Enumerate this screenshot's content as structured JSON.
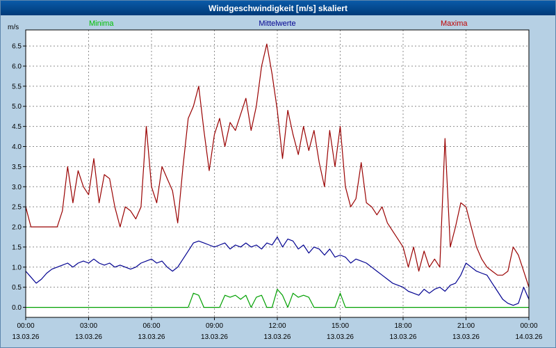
{
  "window": {
    "title": "Windgeschwindigkeit [m/s] skaliert"
  },
  "colors": {
    "background": "#b6d0e4",
    "titlebar": "#003a78",
    "plot_background": "#ffffff",
    "plot_border": "#000000",
    "grid": "#8c8c8c",
    "minima_line": "#00a000",
    "mittelwerte_line": "#000090",
    "maxima_line": "#990000"
  },
  "chart_data": {
    "type": "line",
    "title": "Windgeschwindigkeit [m/s] skaliert",
    "ylabel": "m/s",
    "xlabel": "",
    "grid": true,
    "legend_position": "top",
    "ylim": [
      -0.25,
      6.9
    ],
    "yticks": [
      0.0,
      0.5,
      1.0,
      1.5,
      2.0,
      2.5,
      3.0,
      3.5,
      4.0,
      4.5,
      5.0,
      5.5,
      6.0,
      6.5
    ],
    "xlim": [
      0,
      24
    ],
    "xticks": [
      {
        "hours": 0,
        "time": "00:00",
        "date": "13.03.26"
      },
      {
        "hours": 3,
        "time": "03:00",
        "date": "13.03.26"
      },
      {
        "hours": 6,
        "time": "06:00",
        "date": "13.03.26"
      },
      {
        "hours": 9,
        "time": "09:00",
        "date": "13.03.26"
      },
      {
        "hours": 12,
        "time": "12:00",
        "date": "13.03.26"
      },
      {
        "hours": 15,
        "time": "15:00",
        "date": "13.03.26"
      },
      {
        "hours": 18,
        "time": "18:00",
        "date": "13.03.26"
      },
      {
        "hours": 21,
        "time": "21:00",
        "date": "13.03.26"
      },
      {
        "hours": 24,
        "time": "00:00",
        "date": "14.03.26"
      }
    ],
    "x": [
      0,
      0.25,
      0.5,
      0.75,
      1,
      1.25,
      1.5,
      1.75,
      2,
      2.25,
      2.5,
      2.75,
      3,
      3.25,
      3.5,
      3.75,
      4,
      4.25,
      4.5,
      4.75,
      5,
      5.25,
      5.5,
      5.75,
      6,
      6.25,
      6.5,
      6.75,
      7,
      7.25,
      7.5,
      7.75,
      8,
      8.25,
      8.5,
      8.75,
      9,
      9.25,
      9.5,
      9.75,
      10,
      10.25,
      10.5,
      10.75,
      11,
      11.25,
      11.5,
      11.75,
      12,
      12.25,
      12.5,
      12.75,
      13,
      13.25,
      13.5,
      13.75,
      14,
      14.25,
      14.5,
      14.75,
      15,
      15.25,
      15.5,
      15.75,
      16,
      16.25,
      16.5,
      16.75,
      17,
      17.25,
      17.5,
      17.75,
      18,
      18.25,
      18.5,
      18.75,
      19,
      19.25,
      19.5,
      19.75,
      20,
      20.25,
      20.5,
      20.75,
      21,
      21.25,
      21.5,
      21.75,
      22,
      22.25,
      22.5,
      22.75,
      23,
      23.25,
      23.5,
      23.75,
      24
    ],
    "series": [
      {
        "name": "Minima",
        "color": "#00a000",
        "legend_color": "#00c000",
        "values": [
          0,
          0,
          0,
          0,
          0,
          0,
          0,
          0,
          0,
          0,
          0,
          0,
          0,
          0,
          0,
          0,
          0,
          0,
          0,
          0,
          0,
          0,
          0,
          0,
          0,
          0,
          0,
          0,
          0,
          0,
          0,
          0,
          0.35,
          0.3,
          0,
          0,
          0,
          0,
          0.3,
          0.25,
          0.3,
          0.2,
          0.3,
          0,
          0.25,
          0.3,
          0,
          0,
          0.45,
          0.3,
          0,
          0.35,
          0.25,
          0.3,
          0.25,
          0,
          0,
          0,
          0,
          0,
          0.35,
          0,
          0,
          0,
          0,
          0,
          0,
          0,
          0,
          0,
          0,
          0,
          0,
          0,
          0,
          0,
          0,
          0,
          0,
          0,
          0,
          0,
          0,
          0,
          0,
          0,
          0,
          0,
          0,
          0,
          0,
          0,
          0,
          0,
          0,
          0,
          0
        ]
      },
      {
        "name": "Mittelwerte",
        "color": "#000090",
        "legend_color": "#000090",
        "values": [
          0.9,
          0.75,
          0.6,
          0.7,
          0.85,
          0.95,
          1.0,
          1.05,
          1.1,
          1.0,
          1.1,
          1.15,
          1.1,
          1.2,
          1.1,
          1.05,
          1.1,
          1.0,
          1.05,
          1.0,
          0.95,
          1.0,
          1.1,
          1.15,
          1.2,
          1.1,
          1.15,
          1.0,
          0.9,
          1.0,
          1.2,
          1.4,
          1.6,
          1.65,
          1.6,
          1.55,
          1.5,
          1.55,
          1.6,
          1.45,
          1.55,
          1.5,
          1.6,
          1.5,
          1.55,
          1.45,
          1.6,
          1.55,
          1.75,
          1.5,
          1.7,
          1.65,
          1.45,
          1.55,
          1.35,
          1.5,
          1.45,
          1.3,
          1.45,
          1.25,
          1.3,
          1.25,
          1.1,
          1.2,
          1.15,
          1.1,
          1.0,
          0.9,
          0.8,
          0.7,
          0.6,
          0.55,
          0.5,
          0.4,
          0.35,
          0.3,
          0.45,
          0.35,
          0.45,
          0.5,
          0.4,
          0.55,
          0.6,
          0.8,
          1.1,
          1.0,
          0.9,
          0.85,
          0.8,
          0.6,
          0.4,
          0.2,
          0.1,
          0.05,
          0.1,
          0.5,
          0.2
        ]
      },
      {
        "name": "Maxima",
        "color": "#990000",
        "legend_color": "#c00000",
        "values": [
          2.5,
          2.0,
          2.0,
          2.0,
          2.0,
          2.0,
          2.0,
          2.4,
          3.5,
          2.6,
          3.4,
          3.0,
          2.8,
          3.7,
          2.6,
          3.3,
          3.2,
          2.5,
          2.0,
          2.5,
          2.4,
          2.2,
          2.5,
          4.5,
          3.0,
          2.6,
          3.5,
          3.2,
          2.9,
          2.1,
          3.5,
          4.7,
          5.0,
          5.5,
          4.4,
          3.4,
          4.3,
          4.7,
          4.0,
          4.6,
          4.4,
          4.8,
          5.2,
          4.4,
          5.0,
          6.0,
          6.55,
          5.8,
          4.9,
          3.7,
          4.9,
          4.3,
          3.8,
          4.5,
          3.9,
          4.4,
          3.6,
          3.0,
          4.4,
          3.5,
          4.5,
          3.0,
          2.5,
          2.7,
          3.6,
          2.6,
          2.5,
          2.3,
          2.5,
          2.1,
          1.9,
          1.7,
          1.5,
          1.0,
          1.5,
          0.9,
          1.4,
          1.0,
          1.2,
          1.0,
          4.2,
          1.5,
          2.0,
          2.6,
          2.5,
          2.0,
          1.5,
          1.2,
          1.0,
          0.9,
          0.8,
          0.8,
          0.9,
          1.5,
          1.3,
          0.9,
          0.5
        ]
      }
    ]
  }
}
